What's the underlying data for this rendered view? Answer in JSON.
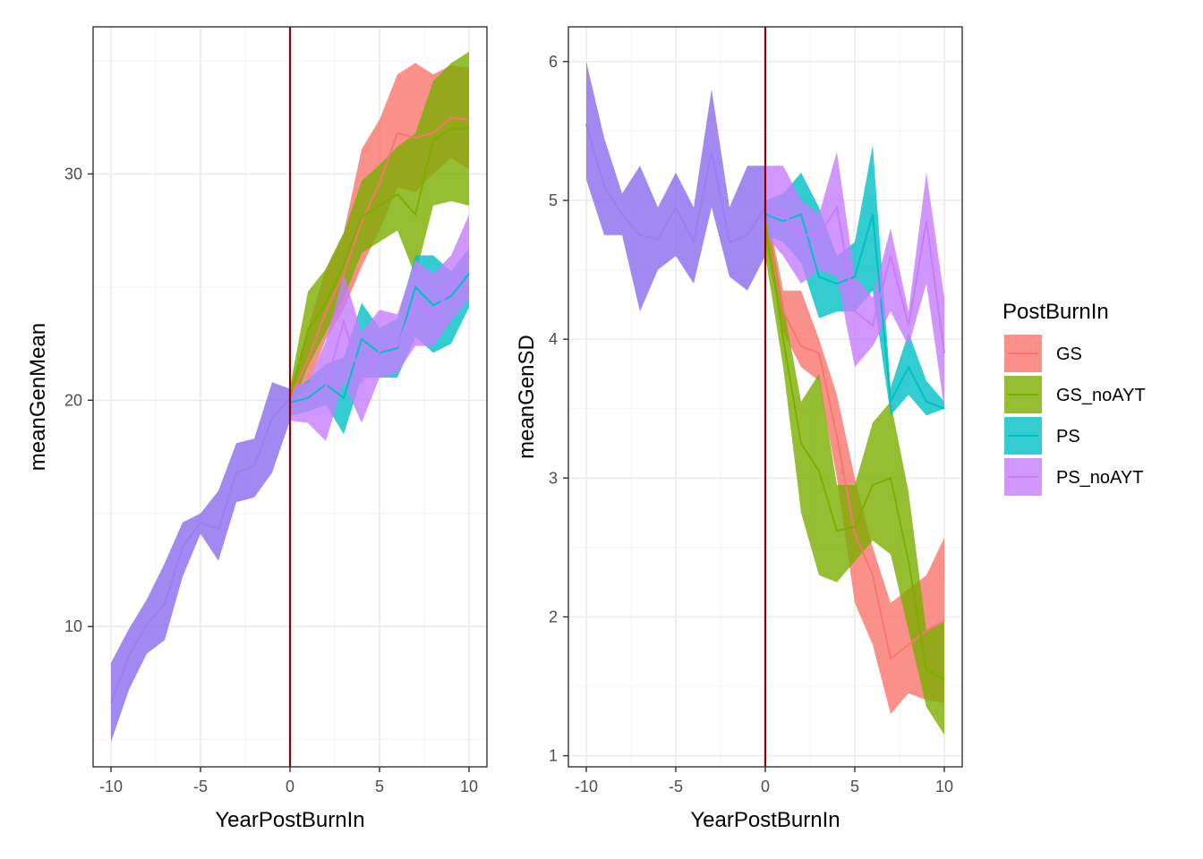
{
  "chart_data": [
    {
      "type": "line",
      "xlabel": "YearPostBurnIn",
      "ylabel": "meanGenMean",
      "xlim": [
        -11,
        11
      ],
      "ylim": [
        3.8,
        36.5
      ],
      "xticks": [
        -10,
        -5,
        0,
        5,
        10
      ],
      "xtick_labels": [
        "-10",
        "-5",
        "0",
        "5",
        "10"
      ],
      "yticks": [
        10,
        20,
        30
      ],
      "ytick_labels": [
        "10",
        "20",
        "30"
      ],
      "grid": true,
      "vline_x": 0,
      "burnin": {
        "x": [
          -10,
          -9,
          -8,
          -7,
          -6,
          -5,
          -4,
          -3,
          -2,
          -1,
          0
        ],
        "mean": [
          6.6,
          8.7,
          10.1,
          11.0,
          13.5,
          14.6,
          14.3,
          16.8,
          17.1,
          19.2,
          20.1
        ],
        "lower": [
          4.9,
          7.2,
          8.8,
          9.4,
          12.2,
          14.1,
          12.9,
          15.5,
          15.7,
          16.8,
          19.1
        ],
        "upper": [
          8.4,
          9.9,
          11.2,
          12.8,
          14.6,
          15.0,
          16.0,
          18.1,
          18.3,
          20.8,
          20.5
        ]
      },
      "series": [
        {
          "name": "GS",
          "x": [
            0,
            1,
            2,
            3,
            4,
            5,
            6,
            7,
            8,
            9,
            10
          ],
          "mean": [
            20.1,
            21.8,
            23.9,
            25.6,
            27.9,
            29.6,
            31.8,
            31.6,
            31.8,
            32.5,
            32.4
          ],
          "lower": [
            19.7,
            20.7,
            22.7,
            24.0,
            25.9,
            27.5,
            29.4,
            29.2,
            30.0,
            30.7,
            30.2
          ],
          "upper": [
            20.5,
            23.2,
            25.8,
            27.4,
            31.1,
            32.4,
            34.4,
            34.9,
            34.4,
            34.8,
            34.7
          ]
        },
        {
          "name": "GS_noAYT",
          "x": [
            0,
            1,
            2,
            3,
            4,
            5,
            6,
            7,
            8,
            9,
            10
          ],
          "mean": [
            20.1,
            23.1,
            24.3,
            26.0,
            28.1,
            28.6,
            29.1,
            28.2,
            31.5,
            32.0,
            32.0
          ],
          "lower": [
            19.5,
            21.5,
            23.0,
            24.5,
            26.5,
            27.0,
            27.5,
            25.5,
            28.6,
            28.8,
            28.6
          ],
          "upper": [
            20.6,
            24.8,
            25.8,
            27.4,
            29.7,
            30.4,
            31.2,
            31.8,
            34.1,
            34.9,
            35.4
          ]
        },
        {
          "name": "PS",
          "x": [
            0,
            1,
            2,
            3,
            4,
            5,
            6,
            7,
            8,
            9,
            10
          ],
          "mean": [
            19.9,
            20.1,
            20.7,
            20.1,
            22.7,
            22.1,
            22.3,
            25.0,
            24.2,
            24.6,
            25.6
          ],
          "lower": [
            19.3,
            19.5,
            19.8,
            18.5,
            21.0,
            21.0,
            21.0,
            22.8,
            22.1,
            22.5,
            24.1
          ],
          "upper": [
            20.3,
            20.9,
            21.6,
            21.9,
            24.3,
            23.2,
            23.6,
            26.4,
            26.4,
            25.7,
            26.7
          ]
        },
        {
          "name": "PS_noAYT",
          "x": [
            0,
            1,
            2,
            3,
            4,
            5,
            6,
            7,
            8,
            9,
            10
          ],
          "mean": [
            19.8,
            19.9,
            20.6,
            23.5,
            20.8,
            22.2,
            22.4,
            24.4,
            23.7,
            25.0,
            26.4
          ],
          "lower": [
            19.1,
            19.0,
            18.2,
            20.8,
            19.0,
            21.0,
            21.2,
            22.4,
            22.4,
            23.5,
            24.5
          ],
          "upper": [
            20.6,
            20.8,
            22.6,
            25.6,
            23.0,
            24.0,
            23.8,
            26.2,
            25.6,
            26.4,
            28.2
          ]
        }
      ]
    },
    {
      "type": "line",
      "xlabel": "YearPostBurnIn",
      "ylabel": "meanGenSD",
      "xlim": [
        -11,
        11
      ],
      "ylim": [
        0.92,
        6.25
      ],
      "xticks": [
        -10,
        -5,
        0,
        5,
        10
      ],
      "xtick_labels": [
        "-10",
        "-5",
        "0",
        "5",
        "10"
      ],
      "yticks": [
        1,
        2,
        3,
        4,
        5,
        6
      ],
      "ytick_labels": [
        "1",
        "2",
        "3",
        "4",
        "5",
        "6"
      ],
      "grid": true,
      "vline_x": 0,
      "burnin": {
        "x": [
          -10,
          -9,
          -8,
          -7,
          -6,
          -5,
          -4,
          -3,
          -2,
          -1,
          0
        ],
        "mean": [
          5.55,
          5.1,
          4.9,
          4.75,
          4.72,
          4.95,
          4.7,
          5.35,
          4.7,
          4.75,
          4.95
        ],
        "lower": [
          5.15,
          4.75,
          4.75,
          4.2,
          4.5,
          4.6,
          4.4,
          4.95,
          4.45,
          4.35,
          4.6
        ],
        "upper": [
          6.0,
          5.45,
          5.05,
          5.25,
          4.95,
          5.2,
          4.95,
          5.8,
          4.95,
          5.25,
          5.25
        ]
      },
      "series": [
        {
          "name": "GS",
          "x": [
            0,
            1,
            2,
            3,
            4,
            5,
            6,
            7,
            8,
            9,
            10
          ],
          "mean": [
            4.85,
            4.2,
            3.95,
            3.9,
            3.3,
            2.6,
            2.3,
            1.7,
            1.8,
            1.9,
            1.97
          ],
          "lower": [
            4.7,
            4.05,
            3.8,
            3.7,
            3.0,
            2.1,
            1.8,
            1.3,
            1.45,
            1.4,
            1.38
          ],
          "upper": [
            5.0,
            4.35,
            4.35,
            4.0,
            3.6,
            3.0,
            2.5,
            2.1,
            2.2,
            2.3,
            2.57
          ]
        },
        {
          "name": "GS_noAYT",
          "x": [
            0,
            1,
            2,
            3,
            4,
            5,
            6,
            7,
            8,
            9,
            10
          ],
          "mean": [
            4.85,
            4.0,
            3.25,
            3.05,
            2.62,
            2.65,
            2.95,
            3.0,
            2.4,
            1.62,
            1.55
          ],
          "lower": [
            4.6,
            3.8,
            2.75,
            2.3,
            2.25,
            2.4,
            2.55,
            2.45,
            1.9,
            1.35,
            1.15
          ],
          "upper": [
            4.95,
            4.25,
            3.55,
            3.75,
            2.95,
            2.95,
            3.4,
            3.55,
            2.9,
            1.9,
            1.98
          ]
        },
        {
          "name": "PS",
          "x": [
            0,
            1,
            2,
            3,
            4,
            5,
            6,
            7,
            8,
            9,
            10
          ],
          "mean": [
            4.9,
            4.85,
            4.9,
            4.45,
            4.4,
            4.45,
            4.9,
            3.55,
            3.8,
            3.55,
            3.5
          ],
          "lower": [
            4.75,
            4.7,
            4.55,
            4.15,
            4.2,
            4.2,
            4.35,
            3.45,
            3.6,
            3.45,
            3.5
          ],
          "upper": [
            5.0,
            5.05,
            5.2,
            4.95,
            4.6,
            4.7,
            5.4,
            3.65,
            4.05,
            3.7,
            3.55
          ]
        },
        {
          "name": "PS_noAYT",
          "x": [
            0,
            1,
            2,
            3,
            4,
            5,
            6,
            7,
            8,
            9,
            10
          ],
          "mean": [
            4.95,
            4.9,
            4.75,
            4.75,
            4.95,
            4.2,
            4.1,
            4.6,
            4.1,
            4.85,
            3.9
          ],
          "lower": [
            4.75,
            4.6,
            4.4,
            4.5,
            4.45,
            3.8,
            3.95,
            4.2,
            3.95,
            4.4,
            3.5
          ],
          "upper": [
            5.25,
            5.25,
            5.0,
            4.9,
            5.35,
            4.45,
            4.3,
            4.8,
            4.2,
            5.2,
            4.3
          ]
        }
      ]
    }
  ],
  "legend": {
    "title": "PostBurnIn",
    "items": [
      {
        "label": "GS",
        "color": "#F8766D"
      },
      {
        "label": "GS_noAYT",
        "color": "#7CAE00"
      },
      {
        "label": "PS",
        "color": "#00BFC4"
      },
      {
        "label": "PS_noAYT",
        "color": "#C77CFF"
      }
    ]
  },
  "colors": {
    "GS": "#F8766D",
    "GS_noAYT": "#7CAE00",
    "PS": "#00BFC4",
    "PS_noAYT": "#C77CFF",
    "burnin": "#8B6BEE",
    "vline": "#8B0000",
    "grid_major": "#EBEBEB",
    "grid_minor": "#F3F3F3",
    "panel_border": "#333333"
  }
}
